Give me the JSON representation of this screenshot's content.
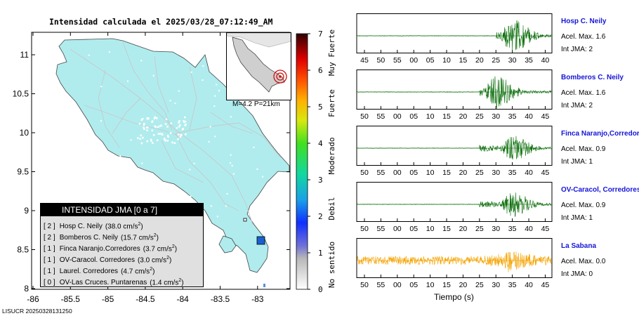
{
  "map": {
    "title": "Intensidad calculada el 2025/03/28_07:12:49_AM",
    "lat_ticks": [
      "11",
      "10.5",
      "10",
      "9.5",
      "9",
      "8.5",
      "8"
    ],
    "lon_ticks": [
      "-86",
      "-85.5",
      "-85",
      "-84.5",
      "-84",
      "-83.5",
      "-83"
    ],
    "inset_caption": "M=4.2 P=21km",
    "land_color": "#b0ecee",
    "road_color": "#c8c8c8",
    "station_marker_color": "#1a5fd0"
  },
  "colorbar": {
    "ticks": [
      "0",
      "1",
      "2",
      "3",
      "4",
      "5",
      "6",
      "7"
    ],
    "labels": [
      "No sentido",
      "Debil",
      "Moderado",
      "Fuerte",
      "Muy Fuerte"
    ]
  },
  "legend": {
    "title": "INTENSIDAD JMA [0 a 7]",
    "rows": [
      {
        "level": "[ 2 ]",
        "name": "Hosp C. Neily",
        "value": "(38.0 cm/s",
        "exp": "2",
        "close": ")"
      },
      {
        "level": "[ 2 ]",
        "name": "Bomberos C. Neily",
        "value": "(15.7 cm/s",
        "exp": "2",
        "close": ")"
      },
      {
        "level": "[ 1 ]",
        "name": "Finca Naranjo.Corredores",
        "value": "(3.7 cm/s",
        "exp": "2",
        "close": ")"
      },
      {
        "level": "[ 1 ]",
        "name": "OV-Caracol. Corredores",
        "value": "(3.0 cm/s",
        "exp": "2",
        "close": ")"
      },
      {
        "level": "[ 1 ]",
        "name": "Laurel. Corredores",
        "value": "(4.7 cm/s",
        "exp": "2",
        "close": ")"
      },
      {
        "level": "[ 0 ]",
        "name": "OV-Las Cruces. Puntarenas",
        "value": "(1.4 cm/s",
        "exp": "2",
        "close": ")"
      }
    ]
  },
  "footer_id": "LISUCR 20250328131250",
  "traces_axis_title": "Tiempo (s)",
  "stations": [
    {
      "name": "Hosp C. Neily",
      "acel": "Acel. Max. 1.6",
      "jma": "Int JMA: 2"
    },
    {
      "name": "Bomberos C. Neily",
      "acel": "Acel. Max. 1.6",
      "jma": "Int JMA: 2"
    },
    {
      "name": "Finca Naranjo,Corredores",
      "acel": "Acel. Max. 0.9",
      "jma": "Int JMA: 1"
    },
    {
      "name": "OV-Caracol, Corredores",
      "acel": "Acel. Max. 0.9",
      "jma": "Int JMA: 1"
    },
    {
      "name": "La Sabana",
      "acel": "Acel. Max. 0.0",
      "jma": "Int JMA: 0"
    }
  ],
  "chart_data": [
    {
      "type": "line",
      "title": "Hosp C. Neily",
      "x_tick_labels": [
        "45",
        "50",
        "55",
        "00",
        "05",
        "10",
        "15",
        "20",
        "25",
        "30",
        "35",
        "40"
      ],
      "color": "#0a6e0a",
      "onset_tick": "25",
      "peak_tick": "30",
      "peak_amplitude": 1.6
    },
    {
      "type": "line",
      "title": "Bomberos C. Neily",
      "x_tick_labels": [
        "50",
        "55",
        "00",
        "05",
        "10",
        "15",
        "20",
        "25",
        "30",
        "35",
        "40",
        "45"
      ],
      "color": "#0a6e0a",
      "onset_tick": "25",
      "peak_tick": "30",
      "peak_amplitude": 1.6
    },
    {
      "type": "line",
      "title": "Finca Naranjo,Corredores",
      "x_tick_labels": [
        "50",
        "55",
        "00",
        "05",
        "10",
        "15",
        "20",
        "25",
        "30",
        "35",
        "40",
        "45"
      ],
      "color": "#0a6e0a",
      "onset_tick": "25",
      "peak_tick": "35",
      "peak_amplitude": 0.9
    },
    {
      "type": "line",
      "title": "OV-Caracol, Corredores",
      "x_tick_labels": [
        "50",
        "55",
        "00",
        "05",
        "10",
        "15",
        "20",
        "25",
        "30",
        "35",
        "40",
        "45"
      ],
      "color": "#0a6e0a",
      "onset_tick": "25",
      "peak_tick": "35",
      "peak_amplitude": 0.9
    },
    {
      "type": "line",
      "title": "La Sabana",
      "x_tick_labels": [
        "50",
        "55",
        "00",
        "05",
        "10",
        "15",
        "20",
        "25",
        "30",
        "35",
        "40",
        "45"
      ],
      "color": "#f5a300",
      "onset_tick": "50",
      "peak_tick": "35",
      "peak_amplitude": 0.0
    }
  ]
}
